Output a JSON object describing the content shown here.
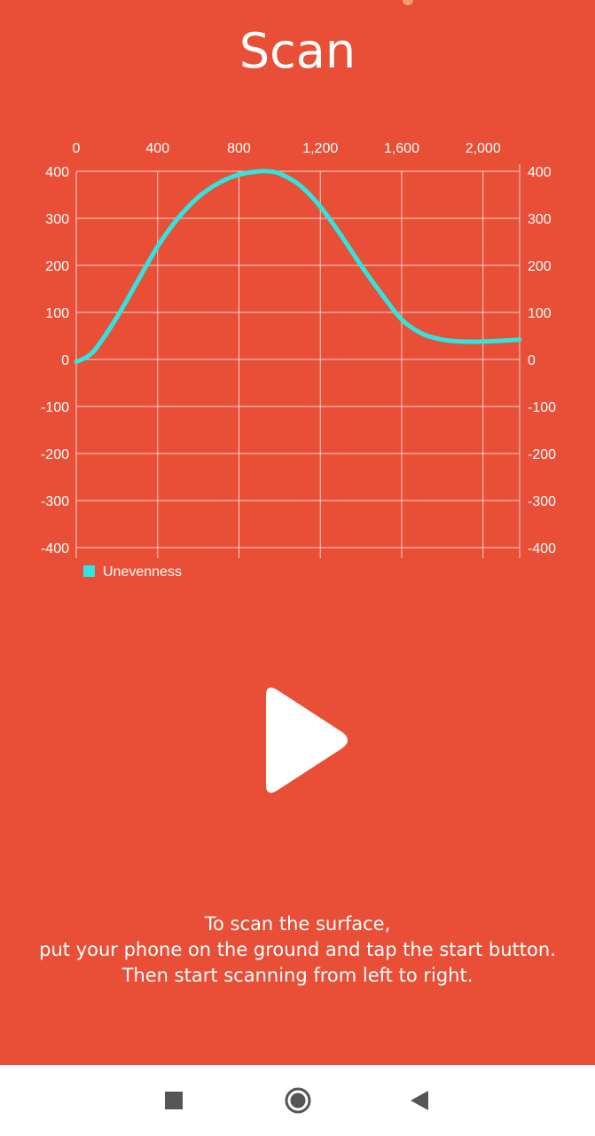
{
  "screen": {
    "title": "Scan"
  },
  "chart_data": {
    "type": "line",
    "title": "",
    "xlabel": "",
    "ylabel": "",
    "x_ticks": [
      "0",
      "400",
      "800",
      "1,200",
      "1,600",
      "2,000"
    ],
    "y_ticks": [
      "400",
      "300",
      "200",
      "100",
      "0",
      "-100",
      "-200",
      "-300",
      "-400"
    ],
    "xlim": [
      0,
      2180
    ],
    "ylim": [
      -400,
      400
    ],
    "grid": true,
    "legend_position": "bottom-left",
    "series": [
      {
        "name": "Unevenness",
        "color": "#2ee6e0",
        "x": [
          0,
          50,
          100,
          200,
          300,
          400,
          500,
          600,
          700,
          800,
          900,
          940,
          1000,
          1100,
          1200,
          1300,
          1400,
          1500,
          1600,
          1700,
          1800,
          1900,
          2000,
          2100,
          2180
        ],
        "y": [
          -5,
          5,
          25,
          90,
          165,
          240,
          300,
          345,
          375,
          393,
          400,
          400,
          395,
          370,
          325,
          265,
          200,
          140,
          85,
          55,
          42,
          38,
          38,
          40,
          42
        ]
      }
    ]
  },
  "play_button": {
    "icon": "play-icon"
  },
  "instructions": {
    "line1": "To scan the surface,",
    "line2": "put your phone on the ground and tap the start button.",
    "line3": "Then start scanning from left to right."
  },
  "navbar": {
    "recents_icon": "square-icon",
    "home_icon": "circle-icon",
    "back_icon": "triangle-back-icon"
  },
  "colors": {
    "background": "#e84f36",
    "line": "#2ee6e0",
    "text": "#ffffff",
    "navbar": "#ffffff",
    "nav_icons": "#555555"
  }
}
